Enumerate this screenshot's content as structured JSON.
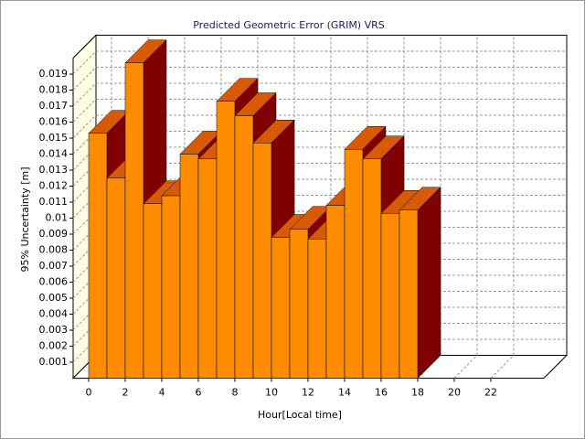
{
  "chart_data": {
    "type": "bar3d",
    "title": "Predicted Geometric Error (GRIM) VRS",
    "xlabel": "Hour[Local time]",
    "ylabel": "95% Uncertainty [m]",
    "x": [
      0,
      1,
      2,
      3,
      4,
      5,
      6,
      7,
      8,
      9,
      10,
      11,
      12,
      13,
      14,
      15,
      16,
      17
    ],
    "values": [
      0.0153,
      0.0125,
      0.0197,
      0.0109,
      0.0114,
      0.014,
      0.0137,
      0.0173,
      0.0164,
      0.0147,
      0.0088,
      0.0093,
      0.0087,
      0.0108,
      0.0143,
      0.0137,
      0.0103,
      0.0105
    ],
    "color": "#ff8c00",
    "top_color": "#d95a06",
    "side_color": "#800000",
    "xlim": [
      0,
      24
    ],
    "xticks": [
      0,
      2,
      4,
      6,
      8,
      10,
      12,
      14,
      16,
      18,
      20,
      22
    ],
    "ylim": [
      0,
      0.02
    ],
    "yticks": [
      0.001,
      0.002,
      0.003,
      0.004,
      0.005,
      0.006,
      0.007,
      0.008,
      0.009,
      0.01,
      0.011,
      0.012,
      0.013,
      0.014,
      0.015,
      0.016,
      0.017,
      0.018,
      0.019
    ],
    "grid": true
  }
}
